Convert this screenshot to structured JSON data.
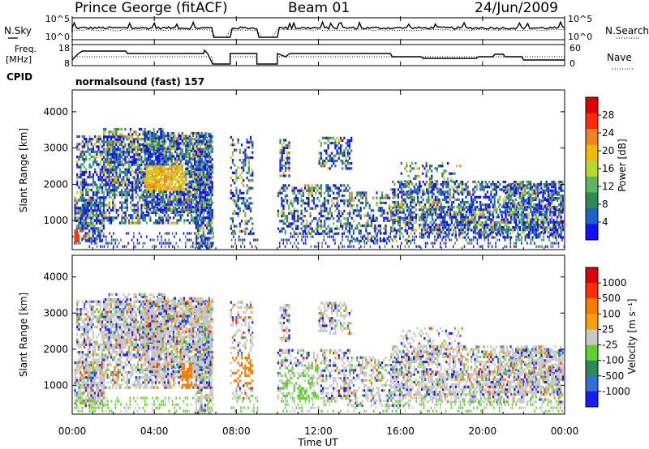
{
  "header": {
    "station": "Prince George (fitACF)",
    "beam": "Beam 01",
    "date": "24/Jun/2009"
  },
  "aux_panels": {
    "nsky_label": "N.Sky",
    "nsky_ticks": [
      "10^5",
      "10^0"
    ],
    "nsearch_label": "N.Search",
    "nsearch_ticks": [
      "10^5",
      "10^0"
    ],
    "freq_label_line1": "Freq.",
    "freq_label_line2": "[MHz]",
    "freq_ticks": [
      "18",
      "8"
    ],
    "nave_label": "Nave",
    "nave_ticks": [
      "60",
      "0"
    ],
    "cpid_label": "CPID",
    "cpid_text": "normalsound (fast) 157"
  },
  "x_axis": {
    "label": "Time UT",
    "ticks": [
      "00:00",
      "04:00",
      "08:00",
      "12:00",
      "16:00",
      "20:00",
      "00:00"
    ]
  },
  "power_panel": {
    "ylabel": "Slant Range [km]",
    "yticks": [
      "4000",
      "3000",
      "2000",
      "1000"
    ],
    "colorbar_label": "Power [dB]",
    "colorbar_ticks": [
      "28",
      "24",
      "20",
      "16",
      "12",
      "8",
      "4"
    ],
    "colors": [
      "#1010ff",
      "#1e5fd0",
      "#2e8b57",
      "#5cb85c",
      "#b8d830",
      "#f5b800",
      "#f58220",
      "#ff2a00",
      "#e00000"
    ]
  },
  "velocity_panel": {
    "ylabel": "Slant Range [km]",
    "yticks": [
      "4000",
      "3000",
      "2000",
      "1000"
    ],
    "colorbar_label": "Velocity [m s⁻¹]",
    "colorbar_ticks": [
      "1000",
      "500",
      "100",
      "25",
      "-25",
      "-100",
      "-500",
      "-1000"
    ],
    "colors": [
      "#1a1aff",
      "#2f6fd6",
      "#2e8b57",
      "#5ed030",
      "#c8c8c8",
      "#f5a000",
      "#f57c00",
      "#ff3000",
      "#e00000"
    ]
  },
  "chart_data": [
    {
      "type": "heatmap",
      "title": "Power",
      "xlabel": "Time UT",
      "ylabel": "Slant Range [km]",
      "xlim": [
        "00:00",
        "24:00"
      ],
      "ylim": [
        200,
        4600
      ],
      "color_scale": {
        "label": "Power [dB]",
        "range": [
          0,
          30
        ]
      },
      "data_gaps_ut": [
        [
          "06:50",
          "07:40"
        ],
        [
          "09:00",
          "10:00"
        ]
      ]
    },
    {
      "type": "heatmap",
      "title": "Velocity",
      "xlabel": "Time UT",
      "ylabel": "Slant Range [km]",
      "xlim": [
        "00:00",
        "24:00"
      ],
      "ylim": [
        200,
        4600
      ],
      "color_scale": {
        "label": "Velocity [m s-1]",
        "range": [
          -1000,
          1000
        ]
      },
      "data_gaps_ut": [
        [
          "06:50",
          "07:40"
        ],
        [
          "09:00",
          "10:00"
        ]
      ]
    }
  ]
}
